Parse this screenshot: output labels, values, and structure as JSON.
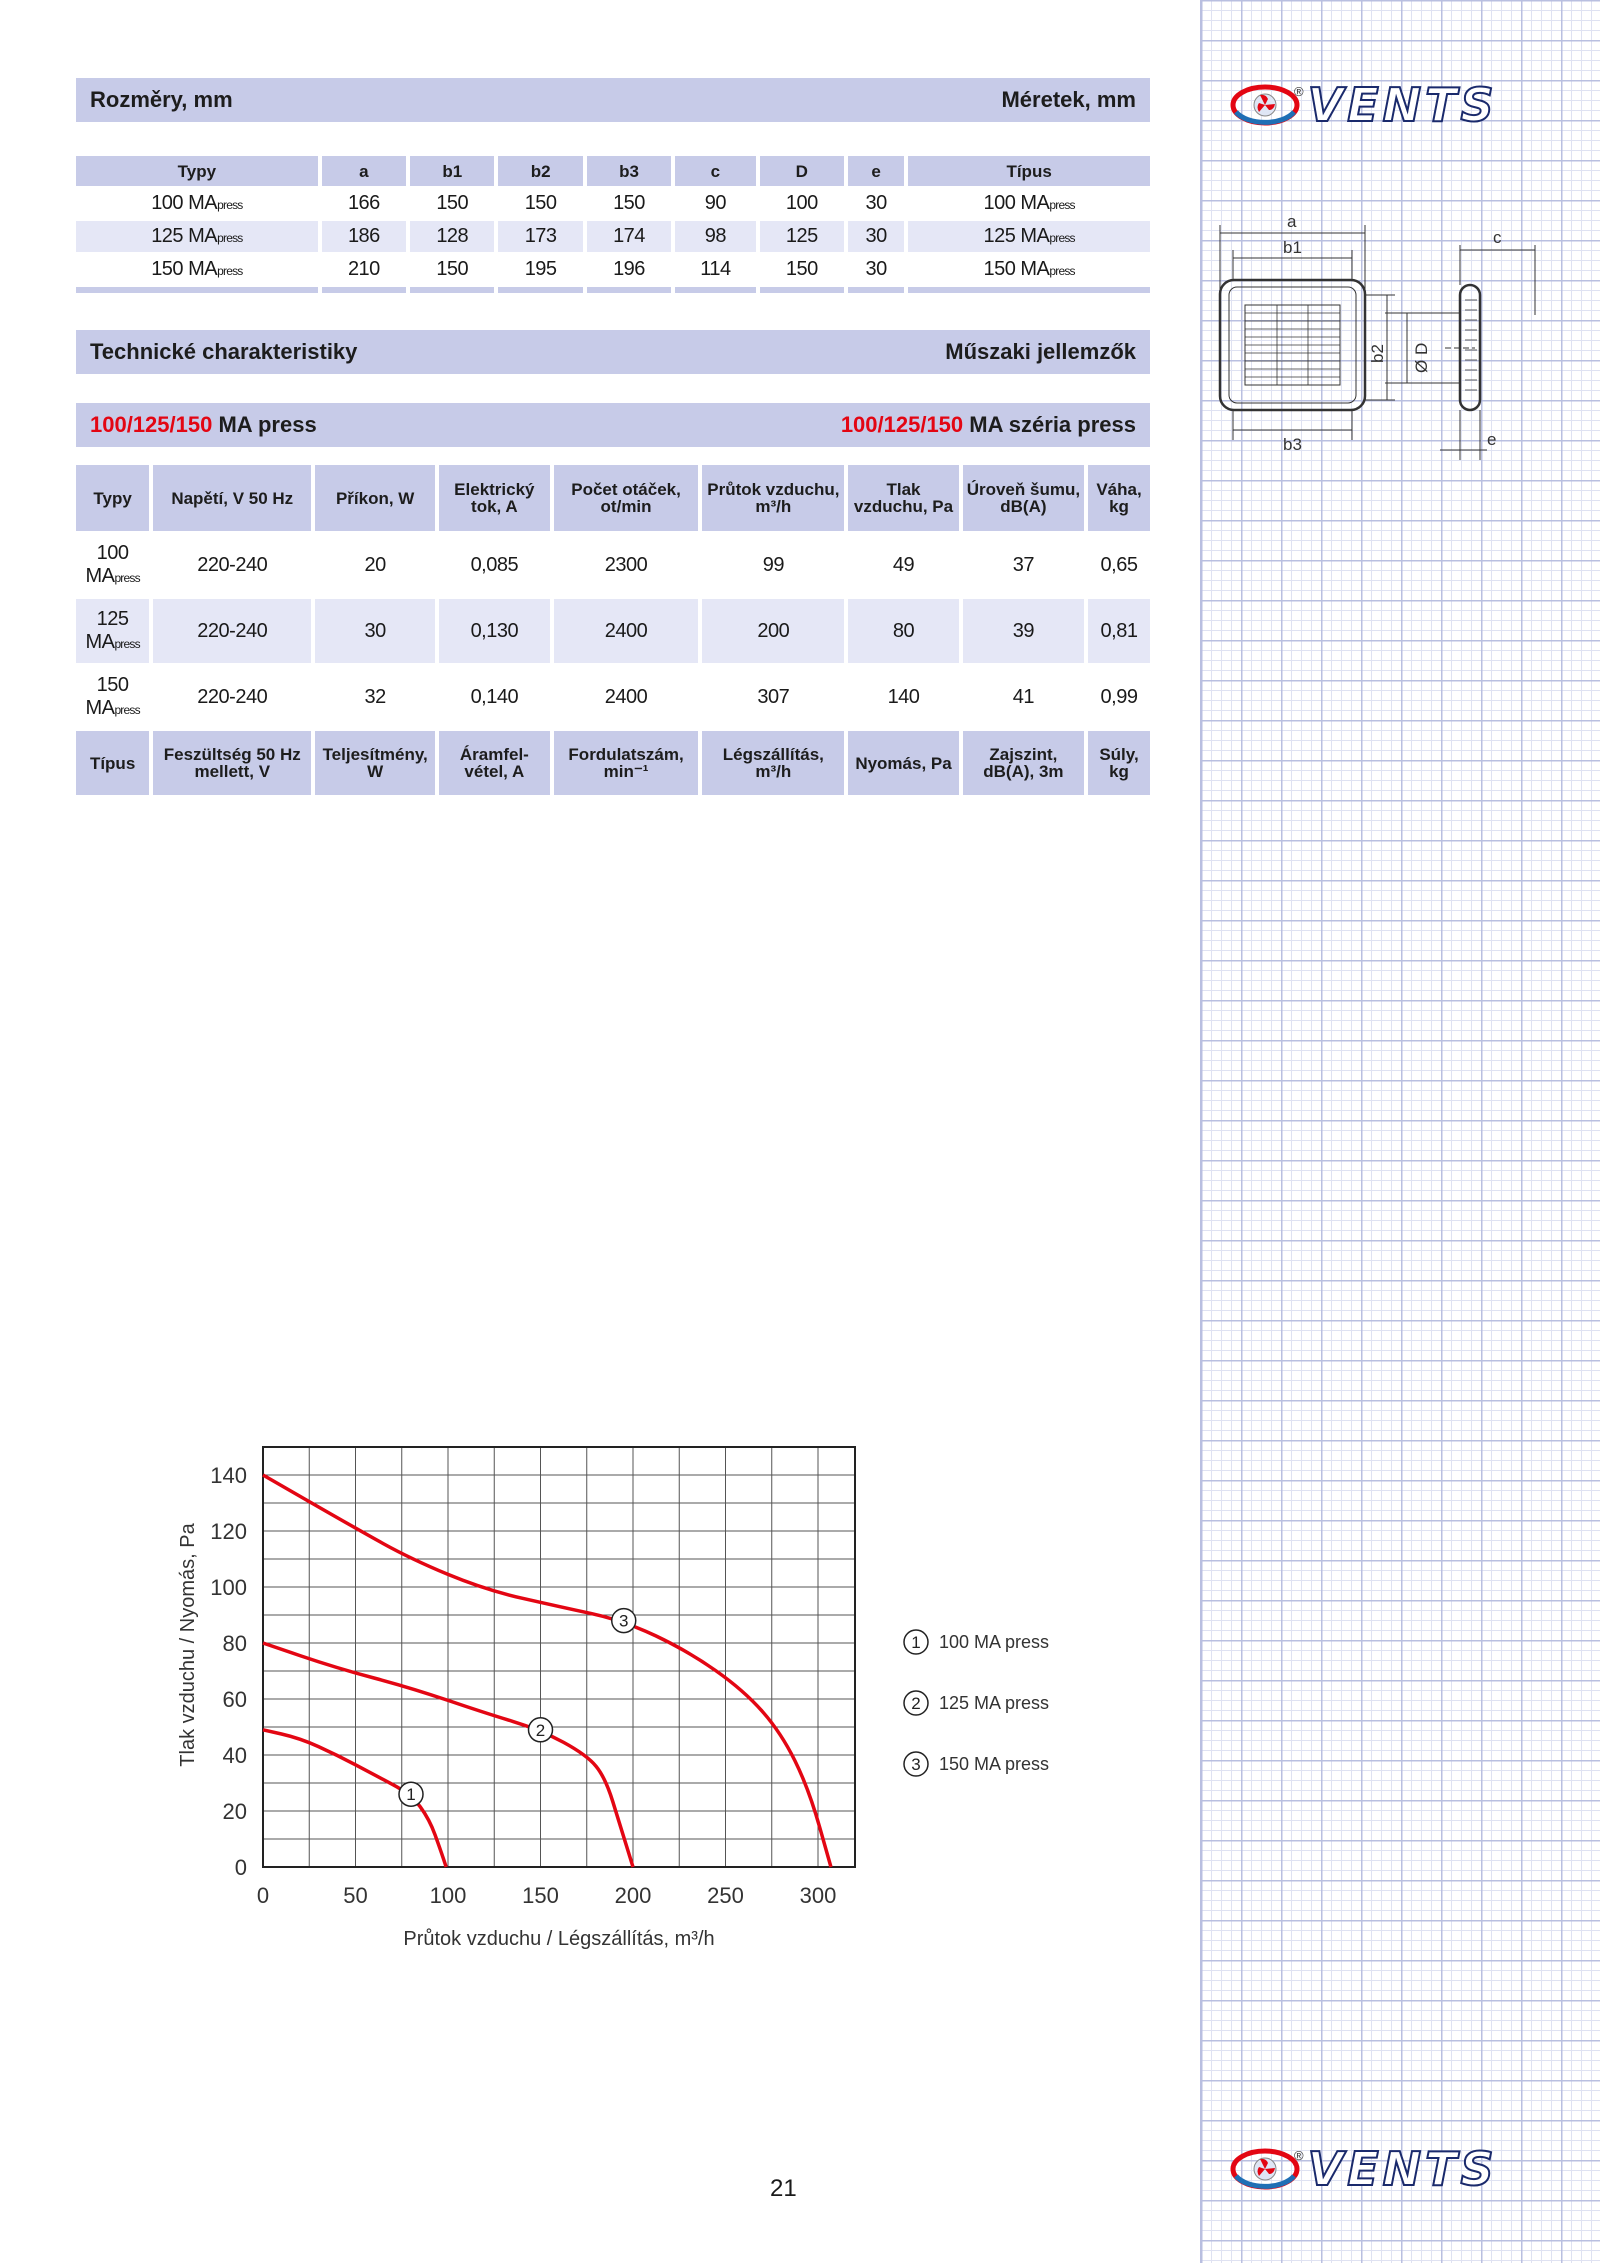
{
  "dimensions": {
    "title_left": "Rozměry, mm",
    "title_right": "Méretek, mm",
    "headers": [
      "Typy",
      "a",
      "b1",
      "b2",
      "b3",
      "c",
      "D",
      "e",
      "Típus"
    ],
    "rows": [
      {
        "model": "100 MA",
        "suffix": "press",
        "values": [
          "166",
          "150",
          "150",
          "150",
          "90",
          "100",
          "30"
        ]
      },
      {
        "model": "125 MA",
        "suffix": "press",
        "values": [
          "186",
          "128",
          "173",
          "174",
          "98",
          "125",
          "30"
        ]
      },
      {
        "model": "150 MA",
        "suffix": "press",
        "values": [
          "210",
          "150",
          "195",
          "196",
          "114",
          "150",
          "30"
        ]
      }
    ]
  },
  "technical": {
    "title_left": "Technické charakteristiky",
    "title_right": "Műszaki jellemzők",
    "sub_left_red": "100/125/150",
    "sub_left": "MA press",
    "sub_right_red": "100/125/150",
    "sub_right": "MA széria press",
    "headers_cz": [
      "Typy",
      "Napětí, V 50 Hz",
      "Příkon, W",
      "Elektrický tok, A",
      "Počet otáček, ot/min",
      "Průtok vzduchu, m³/h",
      "Tlak vzduchu, Pa",
      "Úroveň šumu, dB(A)",
      "Váha, kg"
    ],
    "headers_hu": [
      "Típus",
      "Feszültség 50 Hz mellett, V",
      "Teljesítmény, W",
      "Áramfel-vétel, A",
      "Fordulatszám, min⁻¹",
      "Légszállítás, m³/h",
      "Nyomás, Pa",
      "Zajszint, dB(A), 3m",
      "Súly, kg"
    ],
    "rows": [
      {
        "model": "100 MA",
        "suffix": "press",
        "values": [
          "220-240",
          "20",
          "0,085",
          "2300",
          "99",
          "49",
          "37",
          "0,65"
        ]
      },
      {
        "model": "125 MA",
        "suffix": "press",
        "values": [
          "220-240",
          "30",
          "0,130",
          "2400",
          "200",
          "80",
          "39",
          "0,81"
        ]
      },
      {
        "model": "150 MA",
        "suffix": "press",
        "values": [
          "220-240",
          "32",
          "0,140",
          "2400",
          "307",
          "140",
          "41",
          "0,99"
        ]
      }
    ]
  },
  "drawing": {
    "labels": [
      "a",
      "b1",
      "b2",
      "b3",
      "c",
      "Ø D",
      "e"
    ]
  },
  "logo": {
    "text": "VENTS",
    "registered": "®"
  },
  "page_number": "21",
  "chart_data": {
    "type": "line",
    "xlabel": "Průtok vzduchu / Légszállítás, m³/h",
    "ylabel": "Tlak vzduchu / Nyomás, Pa",
    "xlim": [
      0,
      320
    ],
    "ylim": [
      0,
      150
    ],
    "x_ticks": [
      0,
      50,
      100,
      150,
      200,
      250,
      300
    ],
    "y_ticks": [
      0,
      20,
      40,
      60,
      80,
      100,
      120,
      140
    ],
    "grid": true,
    "line_color": "#e30613",
    "legend_position": "right",
    "series": [
      {
        "marker": "1",
        "name": "100 MA  press",
        "marker_at": [
          80,
          26
        ],
        "points": [
          [
            0,
            49
          ],
          [
            20,
            46
          ],
          [
            40,
            40
          ],
          [
            60,
            33
          ],
          [
            80,
            26
          ],
          [
            90,
            17
          ],
          [
            96,
            6
          ],
          [
            99,
            0
          ]
        ]
      },
      {
        "marker": "2",
        "name": "125 MA  press",
        "marker_at": [
          150,
          49
        ],
        "points": [
          [
            0,
            80
          ],
          [
            40,
            71
          ],
          [
            80,
            64
          ],
          [
            120,
            55
          ],
          [
            150,
            49
          ],
          [
            175,
            40
          ],
          [
            185,
            32
          ],
          [
            193,
            15
          ],
          [
            200,
            0
          ]
        ]
      },
      {
        "marker": "3",
        "name": "150 MA press",
        "marker_at": [
          195,
          88
        ],
        "points": [
          [
            0,
            140
          ],
          [
            50,
            121
          ],
          [
            80,
            110
          ],
          [
            120,
            99
          ],
          [
            160,
            93
          ],
          [
            195,
            88
          ],
          [
            230,
            77
          ],
          [
            260,
            63
          ],
          [
            280,
            48
          ],
          [
            295,
            28
          ],
          [
            307,
            0
          ]
        ]
      }
    ]
  }
}
